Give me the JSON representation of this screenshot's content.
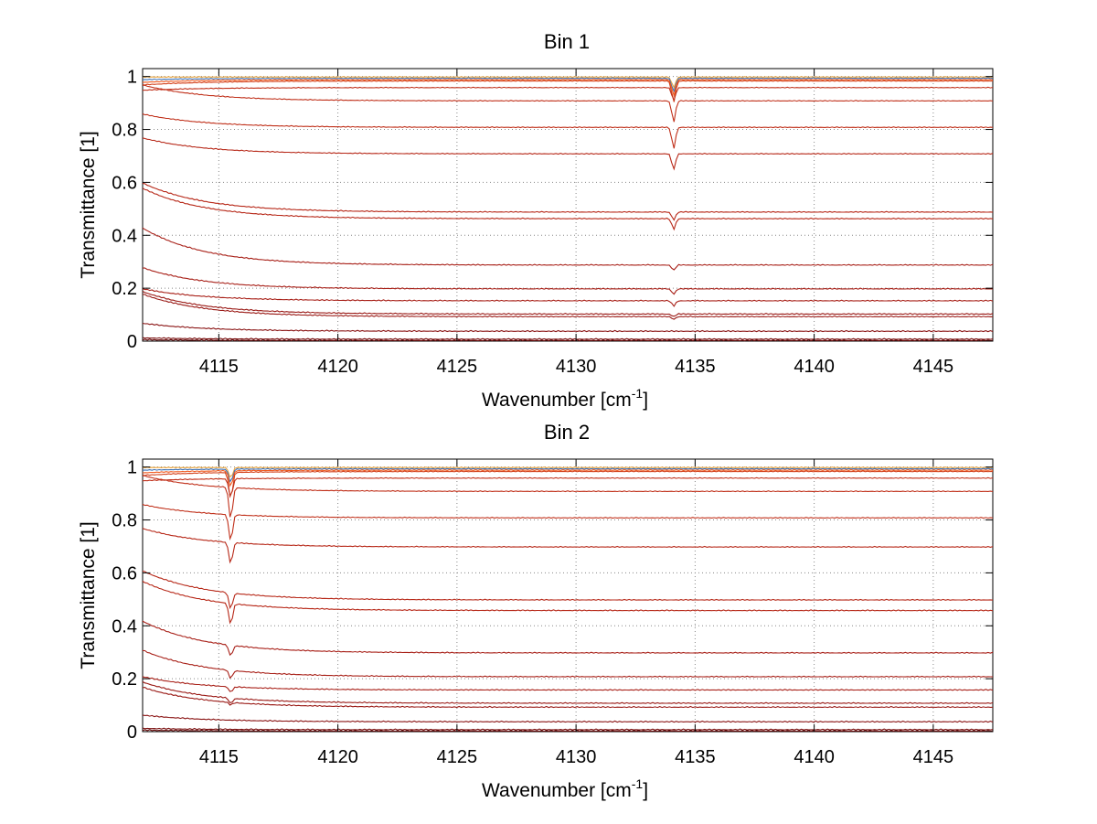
{
  "chart_data": [
    {
      "type": "line",
      "title": "Bin 1",
      "xlabel": "Wavenumber [cm",
      "xlabel_sup": "-1",
      "xlabel_close": "]",
      "ylabel": "Transmittance [1]",
      "xlim": [
        4111.8,
        4147.5
      ],
      "ylim": [
        0,
        1.03
      ],
      "xticks": [
        4115,
        4120,
        4125,
        4130,
        4135,
        4140,
        4145
      ],
      "yticks": [
        0,
        0.2,
        0.4,
        0.6,
        0.8,
        1
      ],
      "ytick_labels": [
        "0",
        "0.2",
        "0.4",
        "0.6",
        "0.8",
        "1"
      ],
      "grid": true,
      "legend": "none",
      "absorption_line_x": 4134.1,
      "series": [
        {
          "level": 1.0,
          "start": 1.0,
          "dip": 0.04,
          "color": "#e8a33c"
        },
        {
          "level": 0.995,
          "start": 0.99,
          "dip": 0.05,
          "color": "#3c72b8"
        },
        {
          "level": 0.99,
          "start": 0.98,
          "dip": 0.06,
          "color": "#f05a1e"
        },
        {
          "level": 0.985,
          "start": 0.97,
          "dip": 0.08,
          "color": "#d2401a"
        },
        {
          "level": 0.96,
          "start": 0.95,
          "dip": 0.05,
          "color": "#c0301a"
        },
        {
          "level": 0.91,
          "start": 0.97,
          "dip": 0.08,
          "color": "#c0301a"
        },
        {
          "level": 0.81,
          "start": 0.86,
          "dip": 0.08,
          "color": "#c0301a"
        },
        {
          "level": 0.71,
          "start": 0.77,
          "dip": 0.06,
          "color": "#b72818"
        },
        {
          "level": 0.49,
          "start": 0.6,
          "dip": 0.03,
          "color": "#b72818"
        },
        {
          "level": 0.465,
          "start": 0.58,
          "dip": 0.04,
          "color": "#b72818"
        },
        {
          "level": 0.29,
          "start": 0.43,
          "dip": 0.02,
          "color": "#a82018"
        },
        {
          "level": 0.2,
          "start": 0.28,
          "dip": 0.02,
          "color": "#a82018"
        },
        {
          "level": 0.155,
          "start": 0.2,
          "dip": 0.02,
          "color": "#a82018"
        },
        {
          "level": 0.105,
          "start": 0.19,
          "dip": 0.01,
          "color": "#9a1a16"
        },
        {
          "level": 0.095,
          "start": 0.18,
          "dip": 0.01,
          "color": "#9a1a16"
        },
        {
          "level": 0.04,
          "start": 0.07,
          "dip": 0.0,
          "color": "#8a1414"
        },
        {
          "level": 0.01,
          "start": 0.015,
          "dip": 0.0,
          "color": "#7a1010"
        },
        {
          "level": 0.005,
          "start": 0.008,
          "dip": 0.0,
          "color": "#6a0c0c"
        }
      ]
    },
    {
      "type": "line",
      "title": "Bin 2",
      "xlabel": "Wavenumber [cm",
      "xlabel_sup": "-1",
      "xlabel_close": "]",
      "ylabel": "Transmittance [1]",
      "xlim": [
        4111.8,
        4147.5
      ],
      "ylim": [
        0,
        1.03
      ],
      "xticks": [
        4115,
        4120,
        4125,
        4130,
        4135,
        4140,
        4145
      ],
      "yticks": [
        0,
        0.2,
        0.4,
        0.6,
        0.8,
        1
      ],
      "ytick_labels": [
        "0",
        "0.2",
        "0.4",
        "0.6",
        "0.8",
        "1"
      ],
      "grid": true,
      "legend": "none",
      "absorption_line_x": 4115.5,
      "series": [
        {
          "level": 1.0,
          "start": 1.0,
          "dip": 0.04,
          "color": "#e8a33c"
        },
        {
          "level": 0.995,
          "start": 0.99,
          "dip": 0.05,
          "color": "#3c72b8"
        },
        {
          "level": 0.99,
          "start": 0.98,
          "dip": 0.06,
          "color": "#f05a1e"
        },
        {
          "level": 0.985,
          "start": 0.97,
          "dip": 0.1,
          "color": "#d2401a"
        },
        {
          "level": 0.96,
          "start": 0.95,
          "dip": 0.07,
          "color": "#c0301a"
        },
        {
          "level": 0.91,
          "start": 0.97,
          "dip": 0.12,
          "color": "#c0301a"
        },
        {
          "level": 0.81,
          "start": 0.86,
          "dip": 0.1,
          "color": "#c0301a"
        },
        {
          "level": 0.7,
          "start": 0.77,
          "dip": 0.08,
          "color": "#b72818"
        },
        {
          "level": 0.5,
          "start": 0.61,
          "dip": 0.06,
          "color": "#b72818"
        },
        {
          "level": 0.46,
          "start": 0.57,
          "dip": 0.08,
          "color": "#b72818"
        },
        {
          "level": 0.3,
          "start": 0.42,
          "dip": 0.04,
          "color": "#a82018"
        },
        {
          "level": 0.21,
          "start": 0.31,
          "dip": 0.03,
          "color": "#a82018"
        },
        {
          "level": 0.16,
          "start": 0.21,
          "dip": 0.02,
          "color": "#a82018"
        },
        {
          "level": 0.11,
          "start": 0.19,
          "dip": 0.02,
          "color": "#9a1a16"
        },
        {
          "level": 0.095,
          "start": 0.17,
          "dip": 0.01,
          "color": "#9a1a16"
        },
        {
          "level": 0.04,
          "start": 0.065,
          "dip": 0.0,
          "color": "#8a1414"
        },
        {
          "level": 0.01,
          "start": 0.015,
          "dip": 0.0,
          "color": "#7a1010"
        },
        {
          "level": 0.005,
          "start": 0.008,
          "dip": 0.0,
          "color": "#6a0c0c"
        }
      ]
    }
  ]
}
